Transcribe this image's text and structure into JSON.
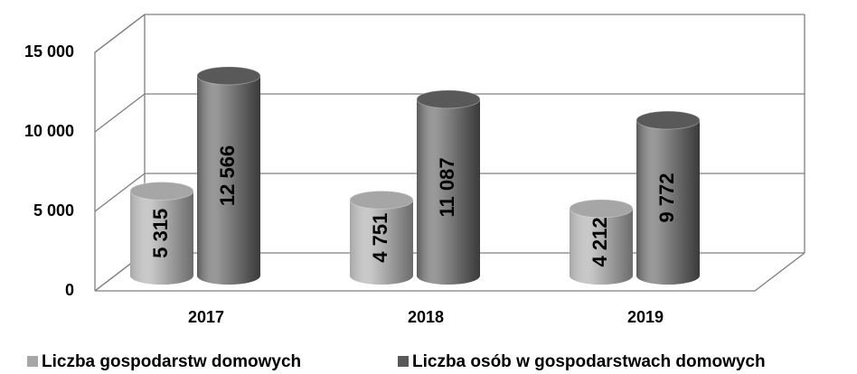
{
  "chart_data": {
    "type": "bar3d-cylinder",
    "categories": [
      "2017",
      "2018",
      "2019"
    ],
    "series": [
      {
        "name": "Liczba gospodarstw domowych",
        "color": "#a6a6a6",
        "values": [
          5315,
          4751,
          4212
        ],
        "value_labels": [
          "5 315",
          "4 751",
          "4 212"
        ]
      },
      {
        "name": "Liczba osób w gospodarstwach domowych",
        "color": "#595959",
        "values": [
          12566,
          11087,
          9772
        ],
        "value_labels": [
          "12 566",
          "11 087",
          "9 772"
        ]
      }
    ],
    "ylim": [
      0,
      15000
    ],
    "yticks": [
      0,
      {
        "value": 5000,
        "label": "5 000"
      },
      {
        "value": 10000,
        "label": "10 000"
      },
      {
        "value": 15000,
        "label": "15 000"
      }
    ],
    "grid": true,
    "legend": "bottom"
  }
}
